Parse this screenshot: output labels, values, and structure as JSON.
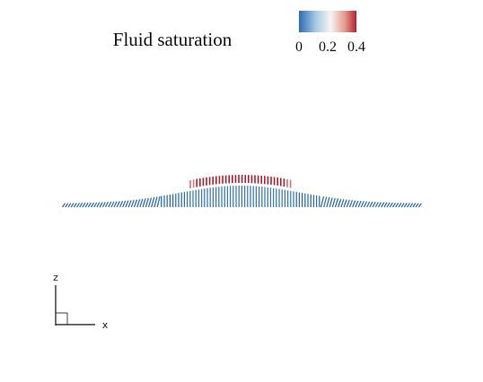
{
  "chart_data": {
    "type": "fiber-field",
    "title": "Fluid saturation",
    "clim": [
      0,
      0.4
    ],
    "cticks": [
      0,
      0.2,
      0.4
    ],
    "axis_labels": {
      "z": "z",
      "x": "x"
    }
  }
}
